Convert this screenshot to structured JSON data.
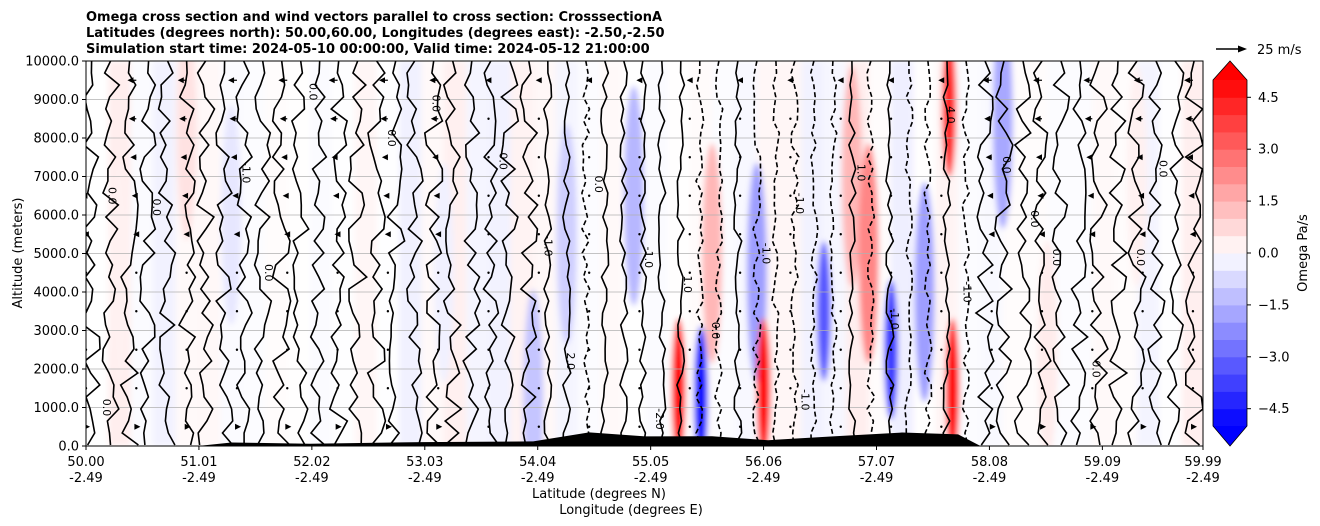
{
  "chart_data": {
    "type": "heatmap",
    "title_lines": [
      "Omega cross section and wind vectors parallel to cross section: CrosssectionA",
      "Latitudes (degrees north): 50.00,60.00, Longitudes (degrees east): -2.50,-2.50",
      "Simulation start time: 2024-05-10 00:00:00, Valid time: 2024-05-12 21:00:00"
    ],
    "xlabel_lat": "Latitude (degrees N)",
    "xlabel_lon": "Longitude (degrees E)",
    "ylabel": "Altitude (meters)",
    "xlim": [
      50.0,
      59.99
    ],
    "ylim": [
      0,
      10000
    ],
    "x_ticks": [
      {
        "lat": "50.00",
        "lon": "-2.49"
      },
      {
        "lat": "51.01",
        "lon": "-2.49"
      },
      {
        "lat": "52.02",
        "lon": "-2.49"
      },
      {
        "lat": "53.03",
        "lon": "-2.49"
      },
      {
        "lat": "54.04",
        "lon": "-2.49"
      },
      {
        "lat": "55.05",
        "lon": "-2.49"
      },
      {
        "lat": "56.06",
        "lon": "-2.49"
      },
      {
        "lat": "57.07",
        "lon": "-2.49"
      },
      {
        "lat": "58.08",
        "lon": "-2.49"
      },
      {
        "lat": "59.09",
        "lon": "-2.49"
      },
      {
        "lat": "59.99",
        "lon": "-2.49"
      }
    ],
    "y_ticks": [
      "0.0",
      "1000.0",
      "2000.0",
      "3000.0",
      "4000.0",
      "5000.0",
      "6000.0",
      "7000.0",
      "8000.0",
      "9000.0",
      "10000.0"
    ],
    "grid": "horizontal",
    "colorbar": {
      "label": "Omega Pa/s",
      "range": [
        -5,
        5
      ],
      "tick_labels": [
        "4.5",
        "3.0",
        "1.5",
        "0.0",
        "−1.5",
        "−3.0",
        "−4.5"
      ],
      "tick_values": [
        4.5,
        3.0,
        1.5,
        0.0,
        -1.5,
        -3.0,
        -4.5
      ],
      "cmap": "bwr",
      "extend": "both"
    },
    "quiver_key": {
      "label": "25 m/s",
      "value": 25
    },
    "contour_labels": [
      "0.0",
      "-1.0",
      "1.0",
      "4.0",
      "-2.0",
      "2.0"
    ],
    "omega_features": [
      {
        "lat": 50.9,
        "z": 8200,
        "omega": 0.6
      },
      {
        "lat": 50.3,
        "z": 4500,
        "omega": 0.3
      },
      {
        "lat": 51.3,
        "z": 6000,
        "omega": -0.5
      },
      {
        "lat": 53.2,
        "z": 4500,
        "omega": -0.3
      },
      {
        "lat": 54.0,
        "z": 1200,
        "omega": -1.2
      },
      {
        "lat": 54.3,
        "z": 5500,
        "omega": -1.0
      },
      {
        "lat": 54.9,
        "z": 6500,
        "omega": -1.5
      },
      {
        "lat": 55.3,
        "z": 1500,
        "omega": 5.5
      },
      {
        "lat": 55.5,
        "z": 1300,
        "omega": -5.0
      },
      {
        "lat": 55.6,
        "z": 5000,
        "omega": 1.5
      },
      {
        "lat": 56.0,
        "z": 4500,
        "omega": -2.0
      },
      {
        "lat": 56.06,
        "z": 1500,
        "omega": 5.0
      },
      {
        "lat": 56.6,
        "z": 3500,
        "omega": -3.5
      },
      {
        "lat": 56.85,
        "z": 7000,
        "omega": 1.5
      },
      {
        "lat": 57.0,
        "z": 5000,
        "omega": 2.5
      },
      {
        "lat": 57.2,
        "z": 2500,
        "omega": -4.0
      },
      {
        "lat": 57.5,
        "z": 4000,
        "omega": -2.0
      },
      {
        "lat": 57.75,
        "z": 1500,
        "omega": 5.0
      },
      {
        "lat": 57.72,
        "z": 8800,
        "omega": 4.5
      },
      {
        "lat": 58.2,
        "z": 8500,
        "omega": -1.8
      },
      {
        "lat": 58.6,
        "z": 2500,
        "omega": 0.4
      },
      {
        "lat": 59.4,
        "z": 7000,
        "omega": 0.3
      }
    ],
    "wind_vectors": {
      "columns_lat": [
        50.0,
        50.45,
        50.9,
        51.35,
        51.8,
        52.25,
        52.7,
        53.15,
        53.6,
        54.05,
        54.5,
        54.95,
        55.4,
        55.85,
        56.3,
        56.75,
        57.2,
        57.65,
        58.1,
        58.55,
        59.0,
        59.45,
        59.9
      ],
      "rows_z": [
        500,
        1500,
        2500,
        3500,
        4500,
        5500,
        6500,
        7500,
        8500,
        9500
      ],
      "u_top_ms": -10,
      "u_bottom_ms": 5
    },
    "terrain": [
      {
        "lat": 51.0,
        "z": 0
      },
      {
        "lat": 51.3,
        "z": 40
      },
      {
        "lat": 52.0,
        "z": 60
      },
      {
        "lat": 53.0,
        "z": 50
      },
      {
        "lat": 54.0,
        "z": 120
      },
      {
        "lat": 54.5,
        "z": 300
      },
      {
        "lat": 55.0,
        "z": 250
      },
      {
        "lat": 55.6,
        "z": 200
      },
      {
        "lat": 56.1,
        "z": 150
      },
      {
        "lat": 56.7,
        "z": 200
      },
      {
        "lat": 57.3,
        "z": 350
      },
      {
        "lat": 57.8,
        "z": 250
      },
      {
        "lat": 58.0,
        "z": 0
      }
    ]
  }
}
